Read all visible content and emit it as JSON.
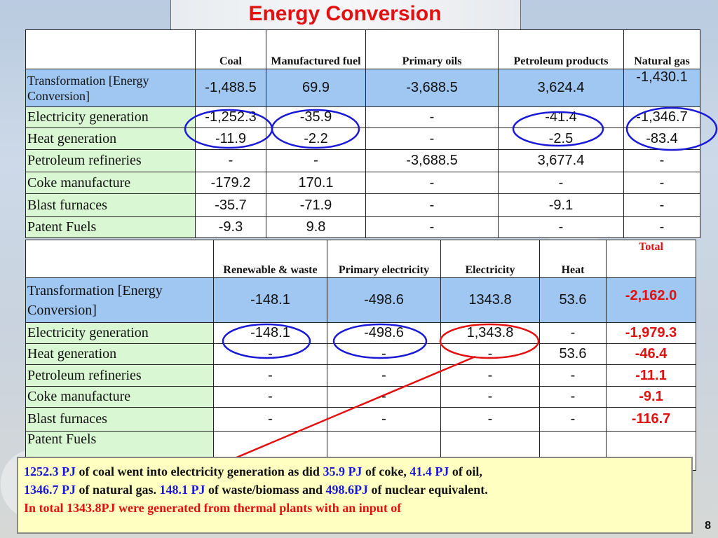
{
  "title": "Energy Conversion",
  "table1": {
    "headers": [
      "",
      "Coal",
      "Manufactured fuel",
      "Primary oils",
      "Petroleum products",
      "Natural gas"
    ],
    "rows": [
      {
        "label": "Transformation [Energy Conversion]",
        "values": [
          "-1,488.5",
          "69.9",
          "-3,688.5",
          "3,624.4",
          "-1,430.1"
        ]
      },
      {
        "label": "Electricity generation",
        "values": [
          "-1,252.3",
          "-35.9",
          "-",
          "-41.4",
          "-1,346.7"
        ]
      },
      {
        "label": "Heat generation",
        "values": [
          "-11.9",
          "-2.2",
          "-",
          "-2.5",
          "-83.4"
        ]
      },
      {
        "label": "Petroleum refineries",
        "values": [
          "-",
          "-",
          "-3,688.5",
          "3,677.4",
          "-"
        ]
      },
      {
        "label": "Coke manufacture",
        "values": [
          "-179.2",
          "170.1",
          "-",
          "-",
          "-"
        ]
      },
      {
        "label": "Blast furnaces",
        "values": [
          "-35.7",
          "-71.9",
          "-",
          "-9.1",
          "-"
        ]
      },
      {
        "label": "Patent Fuels",
        "values": [
          "-9.3",
          "9.8",
          "-",
          "-",
          "-"
        ]
      }
    ]
  },
  "table2": {
    "headers": [
      "",
      "Renewable & waste",
      "Primary electricity",
      "Electricity",
      "Heat",
      "Total"
    ],
    "rows": [
      {
        "label": "Transformation [Energy Conversion]",
        "values": [
          "-148.1",
          "-498.6",
          "1343.8",
          "53.6",
          "-2,162.0"
        ]
      },
      {
        "label": "Electricity generation",
        "values": [
          "-148.1",
          "-498.6",
          "1,343.8",
          "-",
          "-1,979.3"
        ]
      },
      {
        "label": "Heat generation",
        "values": [
          "-",
          "-",
          "-",
          "53.6",
          "-46.4"
        ]
      },
      {
        "label": "Petroleum refineries",
        "values": [
          "-",
          "-",
          "-",
          "-",
          "-11.1"
        ]
      },
      {
        "label": "Coke manufacture",
        "values": [
          "-",
          "-",
          "-",
          "-",
          "-9.1"
        ]
      },
      {
        "label": "Blast furnaces",
        "values": [
          "-",
          "-",
          "-",
          "-",
          "-116.7"
        ]
      },
      {
        "label": "Patent Fuels",
        "values": [
          "",
          "",
          "",
          "",
          ""
        ]
      }
    ]
  },
  "note": {
    "v1": "1252.3 PJ",
    "t1": " of coal went into electricity generation as did ",
    "v2": "35.9 PJ",
    "t2": " of coke, ",
    "v3": "41.4 PJ",
    "t3": " of oil,",
    "v4": "1346.7 PJ",
    "t4": " of natural gas. ",
    "v5": "148.1 PJ",
    "t5": " of waste/biomass and ",
    "v6": "498.6PJ",
    "t6": " of nuclear equivalent.",
    "line3": "In total 1343.8PJ were generated from thermal plants with an input of"
  },
  "page_number": "8",
  "colors": {
    "title": "#e31010",
    "highlight_circle": "#1a1ad6",
    "emphasis_circle": "#e31010",
    "header_band": "#9fc7f2",
    "row_label_bg": "#d9f7d2",
    "note_bg": "#ffffc2"
  }
}
